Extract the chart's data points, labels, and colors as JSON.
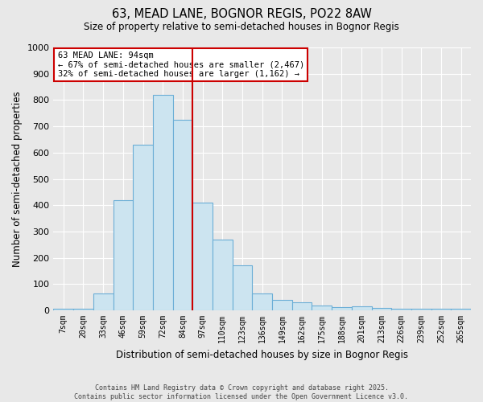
{
  "title1": "63, MEAD LANE, BOGNOR REGIS, PO22 8AW",
  "title2": "Size of property relative to semi-detached houses in Bognor Regis",
  "xlabel": "Distribution of semi-detached houses by size in Bognor Regis",
  "ylabel": "Number of semi-detached properties",
  "footer1": "Contains HM Land Registry data © Crown copyright and database right 2025.",
  "footer2": "Contains public sector information licensed under the Open Government Licence v3.0.",
  "bin_labels": [
    "7sqm",
    "20sqm",
    "33sqm",
    "46sqm",
    "59sqm",
    "72sqm",
    "84sqm",
    "97sqm",
    "110sqm",
    "123sqm",
    "136sqm",
    "149sqm",
    "162sqm",
    "175sqm",
    "188sqm",
    "201sqm",
    "213sqm",
    "226sqm",
    "239sqm",
    "252sqm",
    "265sqm"
  ],
  "values": [
    5,
    5,
    63,
    420,
    630,
    820,
    725,
    410,
    270,
    170,
    63,
    40,
    30,
    20,
    13,
    15,
    8,
    5,
    5,
    5,
    5
  ],
  "bar_color": "#cce4f0",
  "bar_edge_color": "#6baed6",
  "vline_x": 6,
  "vline_color": "#cc0000",
  "annotation_title": "63 MEAD LANE: 94sqm",
  "annotation_line1": "← 67% of semi-detached houses are smaller (2,467)",
  "annotation_line2": "32% of semi-detached houses are larger (1,162) →",
  "annotation_box_color": "#ffffff",
  "annotation_edge_color": "#cc0000",
  "ylim": [
    0,
    1000
  ],
  "yticks": [
    0,
    100,
    200,
    300,
    400,
    500,
    600,
    700,
    800,
    900,
    1000
  ],
  "background_color": "#e8e8e8",
  "grid_color": "#ffffff"
}
